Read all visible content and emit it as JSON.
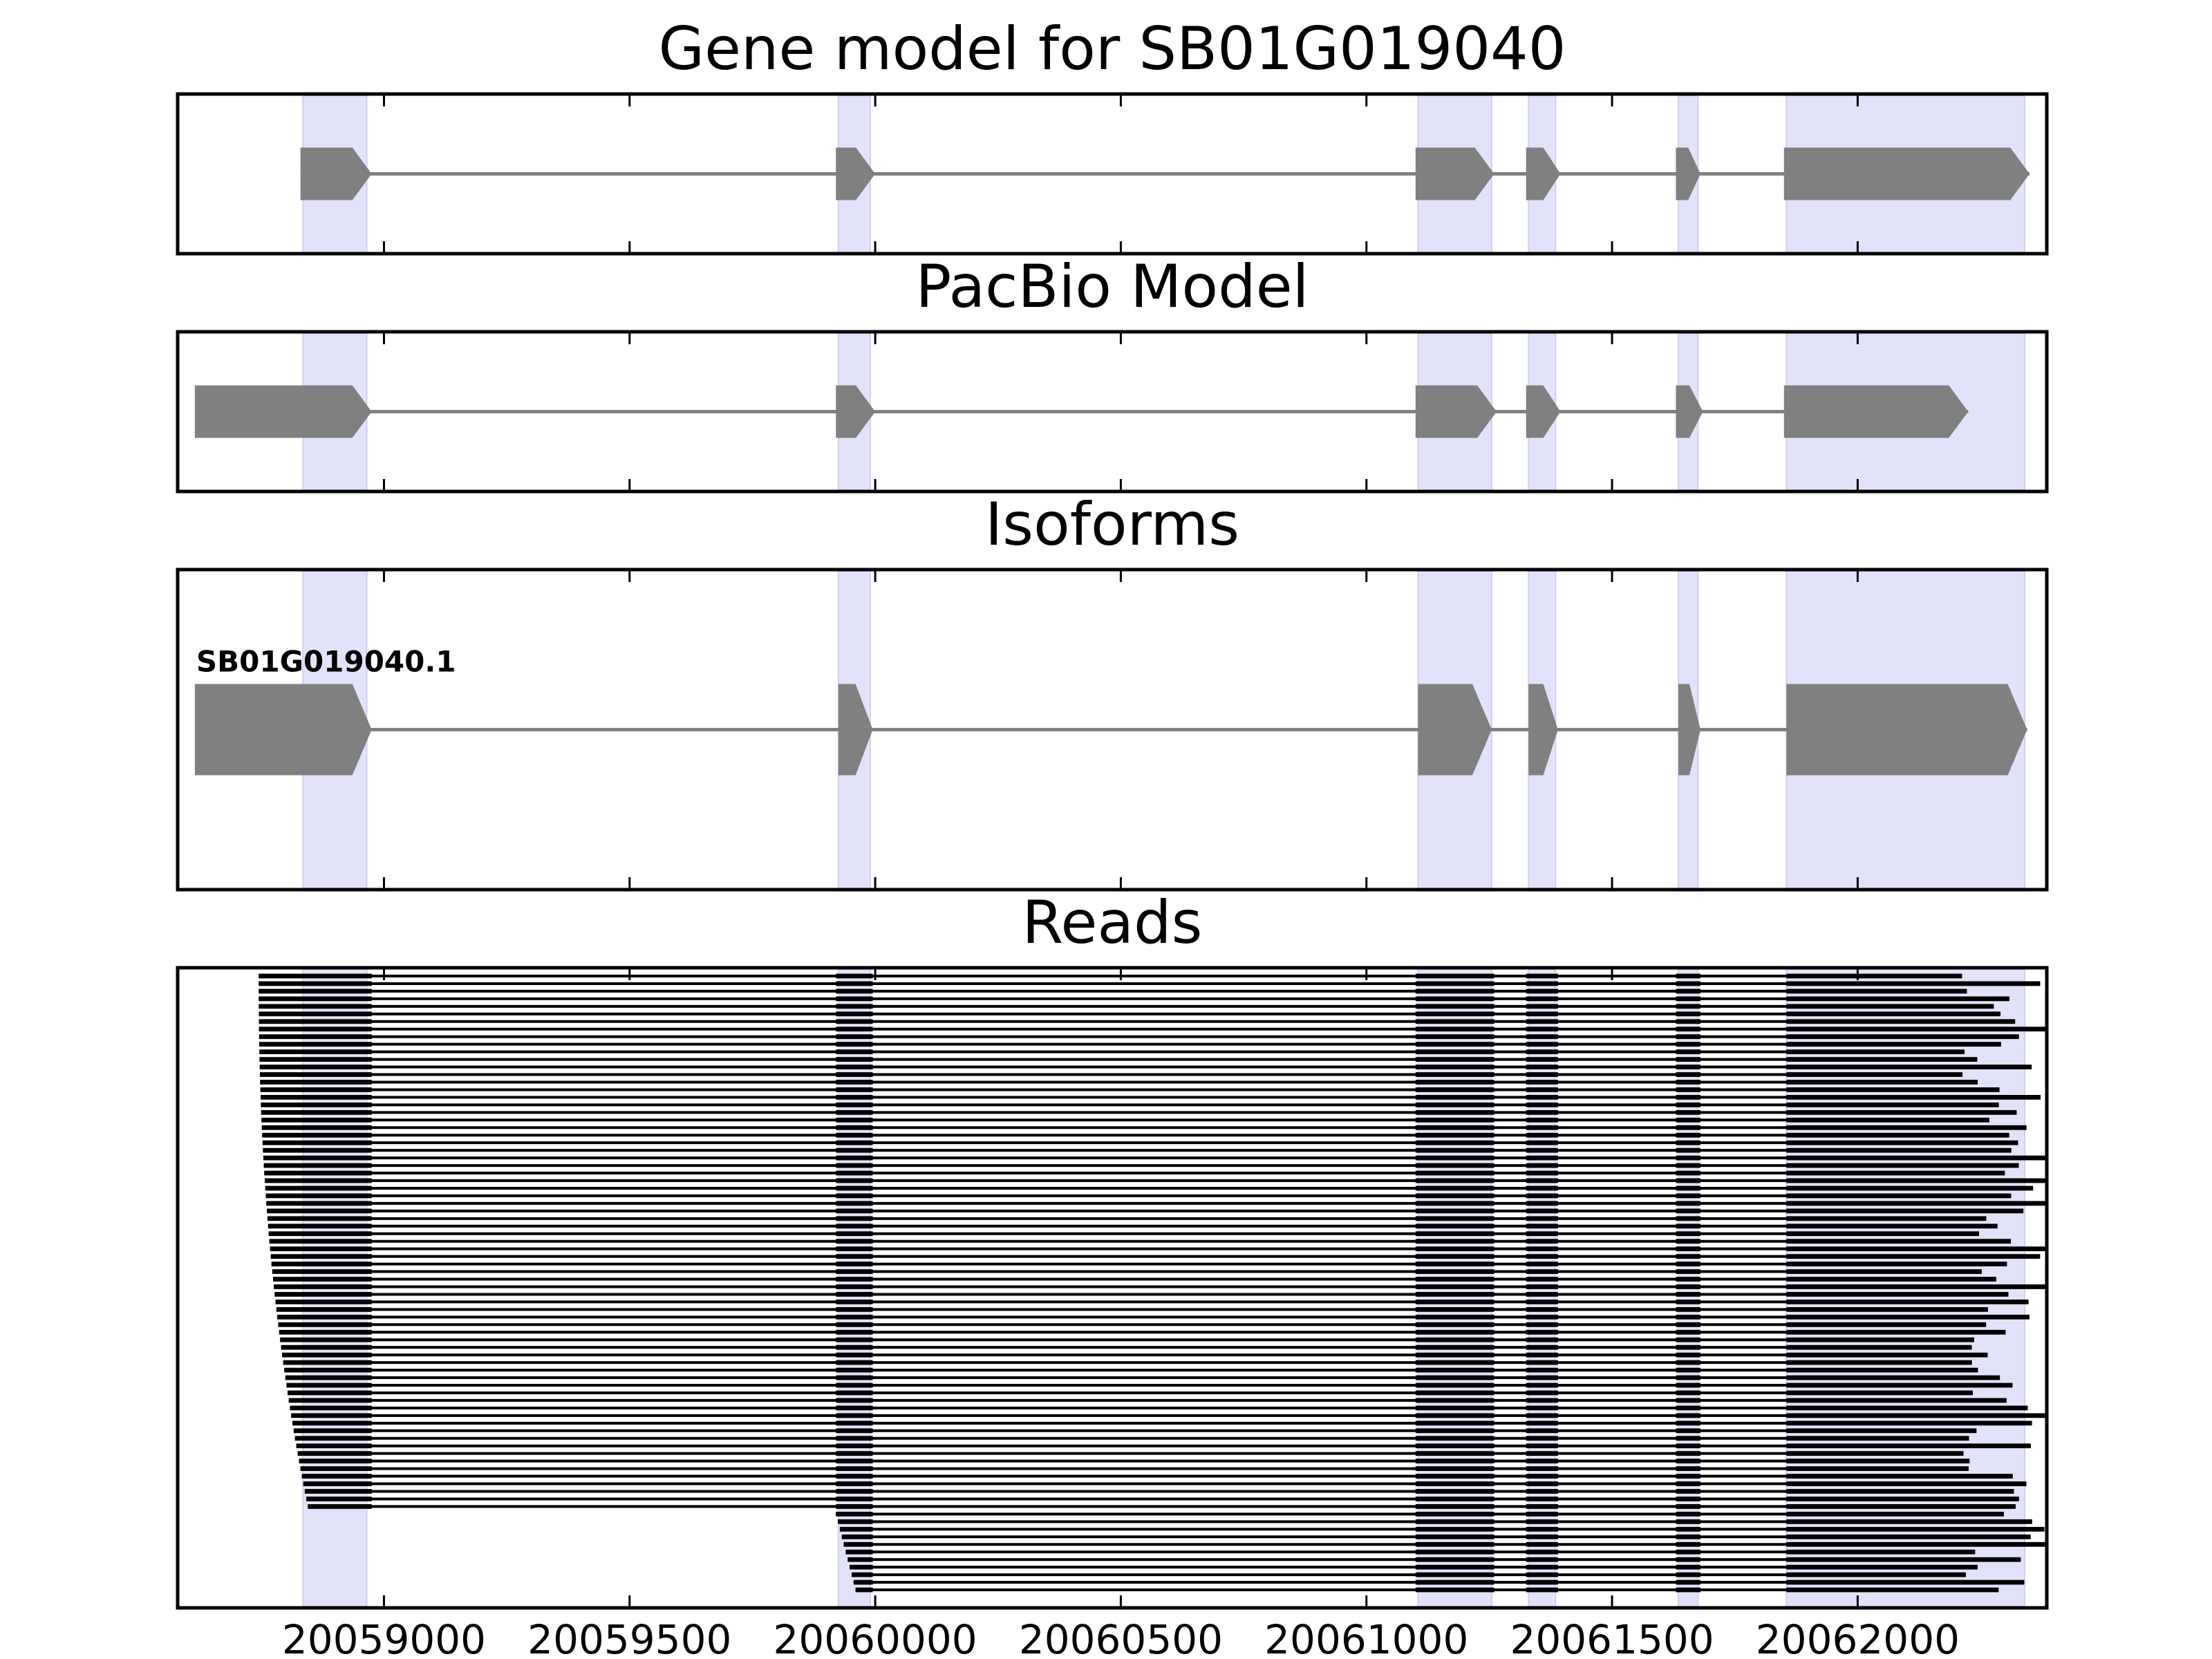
{
  "chart_data": {
    "type": "gene-track",
    "x_axis": {
      "ticks": [
        20059000,
        20059500,
        20060000,
        20060500,
        20061000,
        20061500,
        20062000
      ],
      "tick_labels": [
        "20059000",
        "20059500",
        "20060000",
        "20060500",
        "20061000",
        "20061500",
        "20062000"
      ],
      "xlim": [
        20058580,
        20062385
      ]
    },
    "colors": {
      "feature": "#808080",
      "highlight": "#e2e2fb",
      "read": "#000000",
      "frame": "#000000"
    },
    "highlight_regions": [
      [
        20058835,
        20058965
      ],
      [
        20059925,
        20059990
      ],
      [
        20061105,
        20061255
      ],
      [
        20061330,
        20061385
      ],
      [
        20061635,
        20061675
      ],
      [
        20061855,
        20062340
      ]
    ],
    "panels": [
      {
        "title": "Gene model for SB01G019040",
        "tracks": [
          {
            "label": "",
            "exons": [
              [
                20058830,
                20058975
              ],
              [
                20059920,
                20060000
              ],
              [
                20061100,
                20061260
              ],
              [
                20061325,
                20061395
              ],
              [
                20061630,
                20061680
              ],
              [
                20061850,
                20062350
              ]
            ]
          }
        ]
      },
      {
        "title": "PacBio Model",
        "tracks": [
          {
            "label": "",
            "exons": [
              [
                20058615,
                20058975
              ],
              [
                20059920,
                20060000
              ],
              [
                20061100,
                20061265
              ],
              [
                20061325,
                20061395
              ],
              [
                20061630,
                20061685
              ],
              [
                20061850,
                20062225
              ]
            ]
          }
        ]
      },
      {
        "title": "Isoforms",
        "tracks": [
          {
            "label": "SB01G019040.1",
            "exons": [
              [
                20058615,
                20058975
              ],
              [
                20059925,
                20059995
              ],
              [
                20061105,
                20061255
              ],
              [
                20061330,
                20061390
              ],
              [
                20061635,
                20061680
              ],
              [
                20061855,
                20062345
              ]
            ]
          }
        ]
      },
      {
        "title": "Reads",
        "reads": {
          "count": 82,
          "exon_blocks": [
            [
              20059920,
              20059995
            ],
            [
              20061100,
              20061260
            ],
            [
              20061325,
              20061390
            ],
            [
              20061630,
              20061680
            ],
            [
              20061855,
              20062340
            ]
          ],
          "first_exon_end": 20058975,
          "first_exon_start_range": [
            20058745,
            20058845
          ],
          "rows_without_first_exon": 11,
          "end_range": [
            20062155,
            20062385
          ]
        }
      }
    ]
  }
}
